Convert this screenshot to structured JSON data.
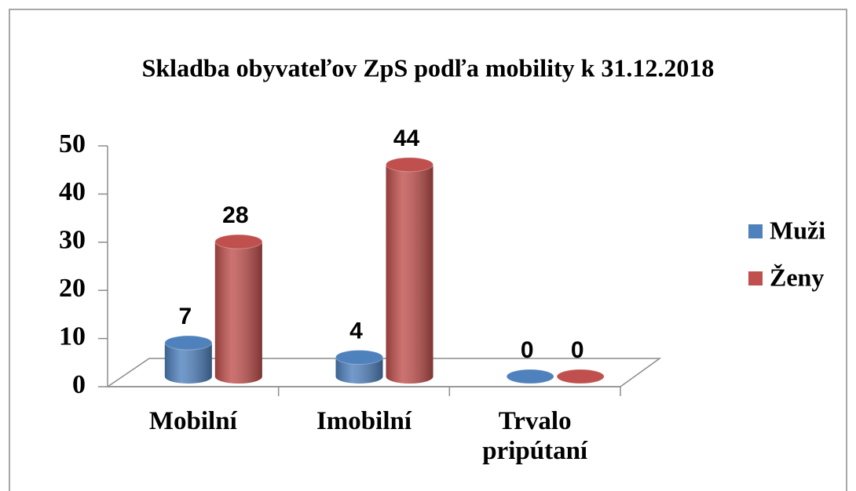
{
  "chart_data": {
    "type": "bar3d",
    "title": "Skladba obyvateľov ZpS podľa mobility k 31.12.2018",
    "categories": [
      "Mobilní",
      "Imobilní",
      "Trvalo pripútaní"
    ],
    "series": [
      {
        "name": "Muži",
        "color": "#4f81bd",
        "values": [
          7,
          4,
          0
        ]
      },
      {
        "name": "Ženy",
        "color": "#c0504d",
        "values": [
          28,
          44,
          0
        ]
      }
    ],
    "ylim": [
      0,
      50
    ],
    "yticks": [
      0,
      10,
      20,
      30,
      40,
      50
    ],
    "legend": "right"
  }
}
